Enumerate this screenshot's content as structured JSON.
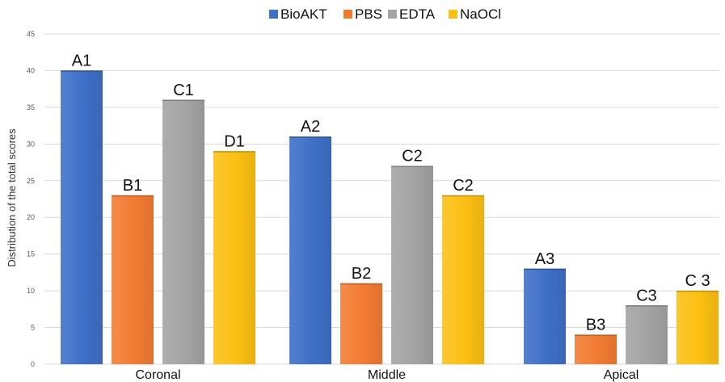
{
  "chart_data": {
    "type": "bar",
    "categories": [
      "Coronal",
      "Middle",
      "Apical"
    ],
    "series": [
      {
        "name": "BioAKT",
        "color": "#3e6fc7",
        "values": [
          40,
          31,
          13
        ],
        "labels": [
          "A1",
          "A2",
          "A3"
        ]
      },
      {
        "name": "PBS",
        "color": "#f27b32",
        "values": [
          23,
          11,
          4
        ],
        "labels": [
          "B1",
          "B2",
          "B3"
        ]
      },
      {
        "name": "EDTA",
        "color": "#a3a3a3",
        "values": [
          36,
          27,
          8
        ],
        "labels": [
          "C1",
          "C2",
          "C3"
        ]
      },
      {
        "name": "NaOCl",
        "color": "#fcbf12",
        "values": [
          29,
          23,
          10
        ],
        "labels": [
          "D1",
          "C2",
          "C 3"
        ]
      }
    ],
    "ylabel": "Distribution of the total scores",
    "xlabel": "",
    "ylim": [
      0,
      45
    ],
    "yticks": [
      0,
      5,
      10,
      15,
      20,
      25,
      30,
      35,
      40,
      45
    ],
    "grid": true,
    "legend_position": "top-center"
  }
}
